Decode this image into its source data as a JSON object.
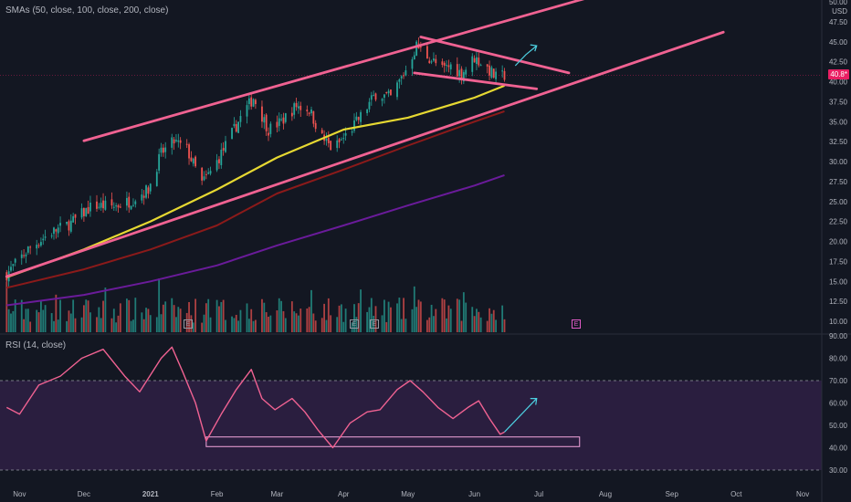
{
  "legends": {
    "sma": "SMAs (50, close, 100, close, 200, close)",
    "rsi": "RSI (14, close)"
  },
  "axis": {
    "currency": "USD",
    "current_price": "40.8*",
    "earnings_marker": "E"
  },
  "colors": {
    "background": "#131722",
    "bull": "#26a69a",
    "bear": "#ef5350",
    "sma50": "#e6d832",
    "sma100": "#8b1a1a",
    "sma200": "#6a1b9a",
    "trendline": "#f06292",
    "arrow": "#4dd0e1",
    "rsi_line": "#f06292",
    "rsi_band": "#2a1e3f"
  },
  "chart_data": [
    {
      "type": "candlestick",
      "title": "SMAs (50, close, 100, close, 200, close)",
      "x_ticks": [
        "Nov",
        "Dec",
        "2021",
        "Feb",
        "Mar",
        "Apr",
        "May",
        "Jun",
        "Jul",
        "Aug",
        "Sep",
        "Oct",
        "Nov"
      ],
      "y_ticks": [
        10.0,
        12.5,
        15.0,
        17.5,
        20.0,
        22.5,
        25.0,
        27.5,
        30.0,
        32.5,
        35.0,
        37.5,
        40.0,
        42.5,
        45.0,
        47.5,
        50.0
      ],
      "ylim": [
        9,
        50
      ],
      "price_path": [
        [
          "2020-10-26",
          15.9
        ],
        [
          "2020-11-05",
          19.0
        ],
        [
          "2020-11-15",
          21.0
        ],
        [
          "2020-11-25",
          22.3
        ],
        [
          "2020-12-05",
          24.5
        ],
        [
          "2020-12-15",
          24.4
        ],
        [
          "2020-12-22",
          25.0
        ],
        [
          "2020-12-31",
          26.5
        ],
        [
          "2021-01-06",
          31.0
        ],
        [
          "2021-01-12",
          32.5
        ],
        [
          "2021-01-18",
          31.5
        ],
        [
          "2021-01-25",
          27.3
        ],
        [
          "2021-01-30",
          29.0
        ],
        [
          "2021-02-05",
          32.0
        ],
        [
          "2021-02-12",
          35.5
        ],
        [
          "2021-02-18",
          38.0
        ],
        [
          "2021-02-25",
          34.0
        ],
        [
          "2021-03-03",
          35.0
        ],
        [
          "2021-03-10",
          37.0
        ],
        [
          "2021-03-16",
          36.5
        ],
        [
          "2021-03-22",
          33.0
        ],
        [
          "2021-03-27",
          31.5
        ],
        [
          "2021-04-03",
          33.5
        ],
        [
          "2021-04-10",
          36.0
        ],
        [
          "2021-04-16",
          38.5
        ],
        [
          "2021-04-23",
          38.0
        ],
        [
          "2021-04-30",
          41.5
        ],
        [
          "2021-05-05",
          44.5
        ],
        [
          "2021-05-11",
          43.0
        ],
        [
          "2021-05-17",
          41.5
        ],
        [
          "2021-05-21",
          42.0
        ],
        [
          "2021-05-26",
          41.0
        ],
        [
          "2021-06-01",
          43.0
        ],
        [
          "2021-06-06",
          42.0
        ],
        [
          "2021-06-11",
          40.5
        ],
        [
          "2021-06-15",
          40.8
        ]
      ],
      "series": [
        {
          "name": "SMA 50",
          "points": [
            [
              "2020-10-26",
              15.5
            ],
            [
              "2020-12-01",
              19.0
            ],
            [
              "2021-01-01",
              22.5
            ],
            [
              "2021-02-01",
              26.5
            ],
            [
              "2021-03-01",
              30.5
            ],
            [
              "2021-04-01",
              34.0
            ],
            [
              "2021-05-01",
              35.5
            ],
            [
              "2021-06-01",
              38.0
            ],
            [
              "2021-06-15",
              39.5
            ]
          ]
        },
        {
          "name": "SMA 100",
          "points": [
            [
              "2020-10-26",
              14.2
            ],
            [
              "2020-12-01",
              16.5
            ],
            [
              "2021-01-01",
              19.0
            ],
            [
              "2021-02-01",
              22.0
            ],
            [
              "2021-03-01",
              26.0
            ],
            [
              "2021-04-01",
              29.0
            ],
            [
              "2021-05-01",
              32.0
            ],
            [
              "2021-06-01",
              35.0
            ],
            [
              "2021-06-15",
              36.3
            ]
          ]
        },
        {
          "name": "SMA 200",
          "points": [
            [
              "2020-10-26",
              12.0
            ],
            [
              "2020-12-01",
              13.3
            ],
            [
              "2021-01-01",
              15.0
            ],
            [
              "2021-02-01",
              17.0
            ],
            [
              "2021-03-01",
              19.5
            ],
            [
              "2021-04-01",
              22.0
            ],
            [
              "2021-05-01",
              24.5
            ],
            [
              "2021-06-01",
              27.0
            ],
            [
              "2021-06-15",
              28.3
            ]
          ]
        }
      ],
      "trendlines": [
        {
          "name": "channel upper",
          "from": [
            "2020-12-01",
            32.6
          ],
          "to": [
            "2021-07-25",
            50.6
          ]
        },
        {
          "name": "channel lower",
          "from": [
            "2020-10-26",
            15.6
          ],
          "to": [
            "2021-09-25",
            46.2
          ]
        },
        {
          "name": "flag upper",
          "from": [
            "2021-05-07",
            45.6
          ],
          "to": [
            "2021-07-15",
            41.1
          ]
        },
        {
          "name": "flag lower",
          "from": [
            "2021-05-04",
            41.1
          ],
          "to": [
            "2021-06-30",
            39.1
          ]
        }
      ],
      "projection_arrows": [
        {
          "from": [
            "2021-06-20",
            42.0
          ],
          "via": [
            "2021-06-25",
            43.4
          ],
          "to": [
            "2021-06-30",
            44.5
          ]
        }
      ],
      "volume_scale": "relative"
    },
    {
      "type": "line",
      "title": "RSI (14, close)",
      "y_ticks": [
        30.0,
        40.0,
        50.0,
        60.0,
        70.0,
        80.0,
        90.0
      ],
      "ylim": [
        25,
        90
      ],
      "reference_lines": [
        70,
        30
      ],
      "band": [
        30,
        70
      ],
      "series": [
        {
          "name": "RSI",
          "points": [
            [
              "2020-10-26",
              58
            ],
            [
              "2020-11-01",
              55
            ],
            [
              "2020-11-10",
              68
            ],
            [
              "2020-11-20",
              72
            ],
            [
              "2020-11-30",
              80
            ],
            [
              "2020-12-10",
              84
            ],
            [
              "2020-12-20",
              72
            ],
            [
              "2020-12-27",
              65
            ],
            [
              "2021-01-06",
              80
            ],
            [
              "2021-01-11",
              85
            ],
            [
              "2021-01-16",
              74
            ],
            [
              "2021-01-22",
              60
            ],
            [
              "2021-01-27",
              43
            ],
            [
              "2021-02-03",
              55
            ],
            [
              "2021-02-10",
              66
            ],
            [
              "2021-02-17",
              75
            ],
            [
              "2021-02-22",
              62
            ],
            [
              "2021-02-28",
              57
            ],
            [
              "2021-03-08",
              62
            ],
            [
              "2021-03-14",
              56
            ],
            [
              "2021-03-20",
              48
            ],
            [
              "2021-03-27",
              40
            ],
            [
              "2021-04-04",
              51
            ],
            [
              "2021-04-12",
              56
            ],
            [
              "2021-04-18",
              57
            ],
            [
              "2021-04-26",
              66
            ],
            [
              "2021-05-02",
              70
            ],
            [
              "2021-05-08",
              65
            ],
            [
              "2021-05-15",
              58
            ],
            [
              "2021-05-22",
              53
            ],
            [
              "2021-05-29",
              58
            ],
            [
              "2021-06-03",
              61
            ],
            [
              "2021-06-08",
              53
            ],
            [
              "2021-06-13",
              46
            ],
            [
              "2021-06-15",
              47
            ]
          ]
        }
      ],
      "support_box": {
        "from": "2021-01-27",
        "to": "2021-07-20",
        "low": 40.5,
        "high": 44.8
      },
      "projection_arrow": {
        "from": [
          "2021-06-15",
          47
        ],
        "to": [
          "2021-06-30",
          62
        ]
      }
    }
  ]
}
